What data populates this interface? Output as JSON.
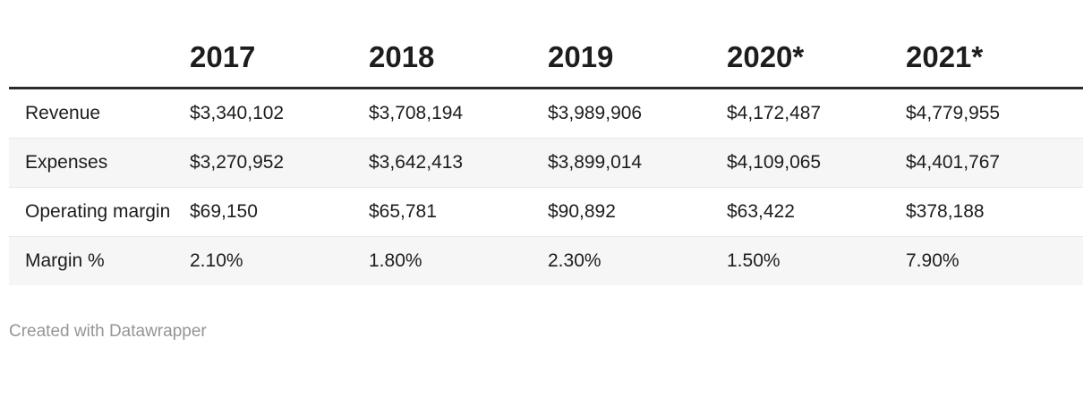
{
  "chart_data": {
    "type": "table",
    "columns": [
      "",
      "2017",
      "2018",
      "2019",
      "2020*",
      "2021*"
    ],
    "rows": [
      {
        "label": "Revenue",
        "values": [
          "$3,340,102",
          "$3,708,194",
          "$3,989,906",
          "$4,172,487",
          "$4,779,955"
        ]
      },
      {
        "label": "Expenses",
        "values": [
          "$3,270,952",
          "$3,642,413",
          "$3,899,014",
          "$4,109,065",
          "$4,401,767"
        ]
      },
      {
        "label": "Operating margin",
        "values": [
          "$69,150",
          "$65,781",
          "$90,892",
          "$63,422",
          "$378,188"
        ]
      },
      {
        "label": "Margin %",
        "values": [
          "2.10%",
          "1.80%",
          "2.30%",
          "1.50%",
          "7.90%"
        ]
      }
    ],
    "layout": {
      "header_rule": true,
      "zebra_striping": true,
      "column_alignment": "left"
    }
  },
  "footer": {
    "attribution": "Created with Datawrapper"
  },
  "colors": {
    "text": "#1d1d1d",
    "header_rule": "#2b2b2b",
    "stripe": "#f6f6f6",
    "row_divider": "#e8e8e8",
    "attribution_text": "#959595",
    "background": "#ffffff"
  }
}
